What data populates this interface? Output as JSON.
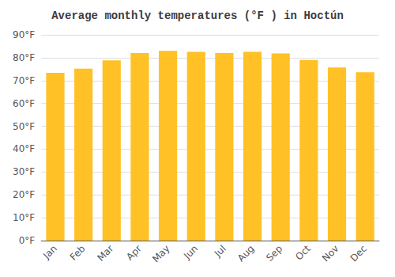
{
  "chart_data": {
    "type": "bar",
    "title": "Average monthly temperatures (°F ) in Hoctún",
    "categories": [
      "Jan",
      "Feb",
      "Mar",
      "Apr",
      "May",
      "Jun",
      "Jul",
      "Aug",
      "Sep",
      "Oct",
      "Nov",
      "Dec"
    ],
    "values": [
      73.4,
      75.2,
      78.8,
      82.0,
      83.0,
      82.6,
      82.0,
      82.6,
      81.9,
      79.0,
      75.7,
      73.6
    ],
    "color": "#FFC125",
    "ylim": [
      0,
      90
    ],
    "yticks": [
      {
        "value": 0,
        "label": "0°F"
      },
      {
        "value": 10,
        "label": "10°F"
      },
      {
        "value": 20,
        "label": "20°F"
      },
      {
        "value": 30,
        "label": "30°F"
      },
      {
        "value": 40,
        "label": "40°F"
      },
      {
        "value": 50,
        "label": "50°F"
      },
      {
        "value": 60,
        "label": "60°F"
      },
      {
        "value": 70,
        "label": "70°F"
      },
      {
        "value": 80,
        "label": "80°F"
      },
      {
        "value": 90,
        "label": "90°F"
      }
    ],
    "grid": true
  }
}
